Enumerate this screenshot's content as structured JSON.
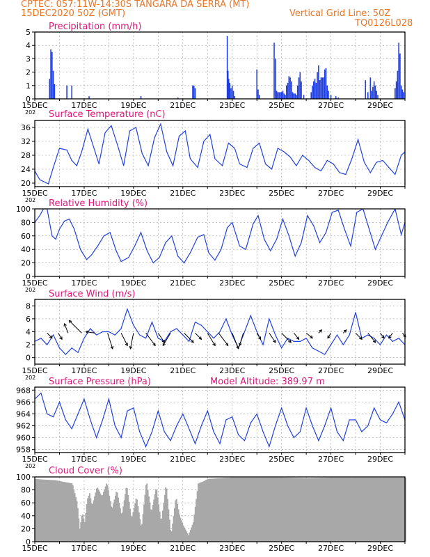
{
  "header": {
    "line1_left": "CPTEC:   057:11W-14:30S   TANGARA DA SERRA (MT)",
    "line2_left": "15DEC2020 50Z (GMT)",
    "line2_right": "Vertical Grid Line: 50Z",
    "line3_right": "TQ0126L028"
  },
  "colors": {
    "header": "#e8772a",
    "panel_title": "#e0177a",
    "series_line": "#1f3fe0",
    "bars": "#1f3fe0",
    "cloud_fill": "#a8a8a8",
    "frame": "#000000",
    "grid": "#9a9a9a"
  },
  "x_axis": {
    "start_day": 15,
    "end_day": 30,
    "tick_labels": [
      "15DEC",
      "17DEC",
      "19DEC",
      "21DEC",
      "23DEC",
      "25DEC",
      "27DEC",
      "29DEC"
    ],
    "tick_days": [
      15,
      17,
      19,
      21,
      23,
      25,
      27,
      29
    ],
    "year_stub": "202"
  },
  "model_altitude": "Model Altitude: 389.97  m",
  "chart_data": [
    {
      "type": "bar",
      "title": "Precipitation (mm/h)",
      "ylim": [
        0,
        5
      ],
      "yticks": [
        0,
        1,
        2,
        3,
        4,
        5
      ],
      "grid": true,
      "x": [
        15.6,
        15.65,
        15.7,
        15.75,
        15.8,
        16.3,
        16.5,
        17.2,
        19.3,
        20.8,
        21.4,
        21.45,
        21.5,
        22.8,
        22.83,
        22.86,
        22.9,
        22.95,
        23.0,
        23.05,
        23.1,
        24.0,
        24.05,
        24.1,
        24.7,
        24.75,
        24.8,
        24.85,
        24.9,
        24.95,
        25.0,
        25.05,
        25.1,
        25.15,
        25.2,
        25.25,
        25.3,
        25.35,
        25.4,
        25.45,
        25.5,
        25.55,
        25.6,
        25.65,
        25.7,
        25.75,
        25.8,
        25.9,
        26.2,
        26.25,
        26.3,
        26.35,
        26.4,
        26.45,
        26.5,
        26.55,
        26.6,
        26.65,
        26.7,
        26.75,
        26.8,
        26.85,
        26.9,
        27.0,
        27.2,
        27.3,
        28.4,
        28.5,
        28.6,
        28.65,
        28.7,
        28.75,
        28.8,
        28.85,
        28.9,
        29.6,
        29.65,
        29.7,
        29.75,
        29.8,
        29.85,
        29.9,
        29.95
      ],
      "values": [
        1.5,
        3.7,
        3.5,
        2.1,
        1.1,
        1.0,
        1.0,
        0.2,
        0.2,
        0.1,
        1.0,
        1.0,
        0.8,
        4.7,
        2.1,
        1.5,
        1.2,
        0.8,
        1.0,
        0.6,
        0.2,
        2.2,
        0.7,
        0.3,
        4.2,
        3.0,
        0.6,
        0.5,
        0.5,
        0.5,
        0.5,
        0.6,
        0.4,
        0.3,
        1.0,
        1.2,
        1.7,
        1.6,
        1.3,
        0.5,
        0.4,
        0.4,
        0.3,
        1.0,
        1.6,
        2.0,
        1.3,
        0.3,
        0.5,
        1.0,
        1.3,
        1.5,
        1.2,
        2.0,
        2.5,
        1.4,
        1.6,
        1.6,
        1.6,
        2.2,
        2.3,
        1.0,
        0.6,
        0.3,
        0.2,
        0.1,
        1.4,
        0.5,
        1.6,
        0.6,
        0.9,
        1.3,
        1.0,
        0.6,
        0.3,
        0.8,
        1.3,
        2.1,
        4.2,
        3.4,
        1.0,
        0.7,
        0.5
      ]
    },
    {
      "type": "line",
      "title": "Surface Temperature (nC)",
      "ylim": [
        19,
        38
      ],
      "yticks": [
        20,
        24,
        28,
        32,
        36
      ],
      "grid": true,
      "x": [
        15.0,
        15.2,
        15.4,
        15.55,
        15.75,
        16.0,
        16.3,
        16.5,
        16.7,
        16.9,
        17.15,
        17.4,
        17.6,
        17.85,
        18.1,
        18.35,
        18.6,
        18.85,
        19.1,
        19.35,
        19.6,
        19.85,
        20.1,
        20.35,
        20.6,
        20.85,
        21.1,
        21.3,
        21.6,
        21.85,
        22.1,
        22.3,
        22.6,
        22.85,
        23.1,
        23.3,
        23.6,
        23.85,
        24.1,
        24.35,
        24.6,
        24.85,
        25.1,
        25.35,
        25.6,
        25.85,
        26.1,
        26.35,
        26.6,
        26.85,
        27.1,
        27.35,
        27.6,
        27.85,
        28.1,
        28.35,
        28.6,
        28.85,
        29.1,
        29.35,
        29.6,
        29.85,
        30.0
      ],
      "values": [
        23.5,
        21.0,
        20.3,
        19.8,
        24.5,
        30.0,
        29.5,
        26.5,
        25.0,
        29.0,
        35.5,
        30.0,
        25.5,
        34.5,
        36.5,
        31.0,
        25.0,
        35.0,
        36.0,
        28.5,
        25.0,
        33.0,
        37.0,
        29.0,
        25.0,
        33.5,
        35.0,
        27.0,
        24.5,
        32.0,
        34.0,
        27.0,
        25.0,
        31.5,
        30.0,
        25.5,
        24.5,
        30.0,
        31.5,
        25.5,
        24.0,
        30.0,
        29.0,
        27.5,
        25.0,
        28.0,
        26.5,
        24.5,
        23.5,
        26.5,
        25.5,
        23.0,
        22.5,
        27.0,
        32.5,
        26.0,
        23.0,
        26.0,
        26.5,
        24.5,
        22.5,
        28.0,
        29.0
      ]
    },
    {
      "type": "line",
      "title": "Relative Humidity (%)",
      "ylim": [
        0,
        100
      ],
      "yticks": [
        0,
        20,
        40,
        60,
        80,
        100
      ],
      "grid": true,
      "x": [
        15.0,
        15.2,
        15.35,
        15.5,
        15.7,
        15.85,
        16.0,
        16.2,
        16.4,
        16.6,
        16.85,
        17.1,
        17.3,
        17.55,
        17.8,
        18.05,
        18.3,
        18.5,
        18.8,
        19.05,
        19.3,
        19.55,
        19.8,
        20.05,
        20.3,
        20.55,
        20.8,
        21.05,
        21.3,
        21.6,
        21.85,
        22.05,
        22.3,
        22.55,
        22.8,
        23.0,
        23.3,
        23.55,
        23.85,
        24.05,
        24.3,
        24.55,
        24.8,
        25.05,
        25.3,
        25.55,
        25.8,
        26.05,
        26.3,
        26.55,
        26.8,
        27.05,
        27.3,
        27.55,
        27.8,
        28.05,
        28.3,
        28.55,
        28.8,
        29.05,
        29.3,
        29.6,
        29.85,
        30.0
      ],
      "values": [
        80,
        90,
        100,
        100,
        60,
        55,
        70,
        82,
        85,
        70,
        40,
        25,
        32,
        45,
        60,
        65,
        38,
        22,
        28,
        45,
        65,
        38,
        20,
        28,
        50,
        60,
        30,
        20,
        35,
        58,
        62,
        35,
        24,
        40,
        72,
        80,
        45,
        40,
        78,
        90,
        55,
        38,
        55,
        85,
        60,
        30,
        50,
        90,
        75,
        50,
        65,
        95,
        98,
        70,
        45,
        95,
        100,
        70,
        40,
        60,
        80,
        100,
        62,
        80
      ]
    },
    {
      "type": "line",
      "title": "Surface Wind (m/s)",
      "ylim": [
        -1,
        9
      ],
      "yticks": [
        0,
        2,
        4,
        6,
        8
      ],
      "grid": true,
      "x": [
        15.0,
        15.25,
        15.5,
        15.75,
        16.0,
        16.25,
        16.5,
        16.75,
        17.0,
        17.25,
        17.5,
        17.75,
        18.0,
        18.25,
        18.5,
        18.75,
        19.0,
        19.25,
        19.5,
        19.75,
        20.0,
        20.25,
        20.5,
        20.75,
        21.0,
        21.25,
        21.5,
        21.75,
        22.0,
        22.25,
        22.5,
        22.75,
        23.0,
        23.25,
        23.5,
        23.75,
        24.0,
        24.25,
        24.5,
        24.75,
        25.0,
        25.25,
        25.5,
        25.75,
        26.0,
        26.25,
        26.5,
        26.75,
        27.0,
        27.25,
        27.5,
        27.75,
        28.0,
        28.25,
        28.5,
        28.75,
        29.0,
        29.25,
        29.5,
        29.75,
        30.0
      ],
      "values": [
        2.5,
        3.0,
        2.0,
        3.5,
        1.5,
        0.5,
        1.5,
        0.8,
        3.0,
        4.5,
        3.5,
        4.0,
        4.0,
        3.5,
        4.5,
        7.5,
        5.0,
        3.5,
        3.0,
        5.5,
        3.0,
        2.5,
        4.0,
        4.5,
        3.5,
        2.5,
        5.5,
        5.0,
        4.0,
        3.0,
        4.0,
        6.0,
        3.5,
        1.5,
        4.0,
        6.5,
        4.0,
        2.0,
        6.0,
        3.5,
        1.5,
        3.0,
        2.5,
        2.5,
        3.0,
        1.5,
        1.0,
        0.5,
        2.0,
        3.5,
        2.0,
        3.5,
        7.0,
        3.0,
        3.5,
        3.0,
        2.0,
        3.5,
        2.5,
        3.0,
        2.0
      ]
    },
    {
      "type": "line",
      "title": "Surface Pressure (hPa)",
      "ylim": [
        957.5,
        968.5
      ],
      "yticks": [
        958,
        960,
        962,
        964,
        966,
        968
      ],
      "grid": true,
      "x": [
        15.0,
        15.25,
        15.5,
        15.75,
        16.0,
        16.25,
        16.5,
        16.75,
        17.0,
        17.25,
        17.5,
        17.75,
        18.0,
        18.25,
        18.5,
        18.75,
        19.0,
        19.25,
        19.5,
        19.75,
        20.0,
        20.25,
        20.5,
        20.75,
        21.0,
        21.25,
        21.5,
        21.75,
        22.0,
        22.25,
        22.5,
        22.75,
        23.0,
        23.25,
        23.5,
        23.75,
        24.0,
        24.25,
        24.5,
        24.75,
        25.0,
        25.25,
        25.5,
        25.75,
        26.0,
        26.25,
        26.5,
        26.75,
        27.0,
        27.25,
        27.5,
        27.75,
        28.0,
        28.25,
        28.5,
        28.75,
        29.0,
        29.25,
        29.5,
        29.75,
        30.0
      ],
      "values": [
        966.5,
        967.5,
        964.0,
        963.5,
        966.0,
        963.0,
        961.5,
        964.0,
        966.5,
        963.0,
        960.0,
        963.0,
        966.5,
        962.0,
        960.0,
        964.5,
        965.0,
        961.0,
        958.5,
        961.0,
        964.5,
        961.0,
        959.5,
        962.0,
        964.0,
        961.5,
        959.0,
        962.0,
        964.5,
        961.0,
        959.0,
        963.0,
        963.5,
        960.5,
        959.5,
        962.5,
        964.0,
        961.0,
        958.5,
        962.0,
        965.0,
        962.0,
        960.0,
        961.0,
        965.0,
        962.0,
        959.5,
        962.0,
        965.0,
        961.0,
        959.5,
        963.0,
        963.0,
        961.0,
        962.0,
        965.0,
        963.0,
        962.5,
        964.0,
        966.0,
        963.0
      ]
    },
    {
      "type": "area",
      "title": "Cloud Cover (%)",
      "ylim": [
        0,
        100
      ],
      "yticks": [
        0,
        20,
        40,
        60,
        80,
        100
      ],
      "grid": true,
      "x": [
        15.0,
        15.3,
        15.8,
        16.2,
        16.5,
        16.7,
        16.8,
        16.9,
        17.0,
        17.1,
        17.2,
        17.3,
        17.5,
        17.7,
        17.9,
        18.1,
        18.3,
        18.5,
        18.7,
        18.9,
        19.1,
        19.3,
        19.5,
        19.7,
        19.9,
        20.1,
        20.3,
        20.5,
        20.7,
        20.85,
        21.0,
        21.2,
        21.4,
        21.6,
        21.8,
        22.0,
        22.5,
        23.0,
        24.0,
        25.0,
        26.0,
        27.0,
        28.0,
        29.0,
        30.0
      ],
      "values": [
        97,
        96,
        95,
        92,
        90,
        60,
        20,
        45,
        30,
        65,
        75,
        55,
        85,
        70,
        92,
        50,
        80,
        40,
        88,
        35,
        70,
        20,
        95,
        45,
        85,
        30,
        90,
        10,
        70,
        40,
        25,
        10,
        30,
        90,
        93,
        97,
        98,
        99,
        99,
        99,
        98,
        99,
        99,
        99,
        99
      ]
    }
  ],
  "wind_arrows": {
    "x": [
      15.5,
      15.95,
      16.35,
      16.9,
      17.45,
      17.95,
      18.5,
      19.0,
      19.5,
      20.0,
      20.5,
      21.05,
      21.5,
      22.0,
      22.45,
      23.0,
      23.45,
      24.0,
      24.5,
      25.0,
      25.5,
      26.0,
      26.5,
      27.0,
      27.5,
      28.0,
      28.5,
      29.0,
      29.5,
      29.9
    ],
    "u": [
      0.8,
      0.6,
      -0.6,
      -2.0,
      -1.5,
      0.8,
      1.0,
      -0.5,
      1.5,
      1.0,
      -1.2,
      1.5,
      1.0,
      1.2,
      1.5,
      1.0,
      -0.6,
      0.6,
      1.0,
      1.5,
      0.8,
      1.0,
      0.5,
      -0.5,
      0.5,
      1.0,
      1.2,
      0.6,
      -0.6,
      0.5
    ],
    "v": [
      -0.8,
      -1.0,
      1.5,
      2.0,
      0.2,
      -2.5,
      -2.0,
      -2.5,
      -2.0,
      -1.5,
      -2.0,
      -1.5,
      -1.0,
      -2.0,
      -2.0,
      -2.5,
      -2.0,
      -1.0,
      -1.5,
      -1.5,
      -1.0,
      -0.8,
      0.5,
      -0.8,
      0.5,
      -1.0,
      -1.5,
      -0.8,
      -0.8,
      -0.6
    ]
  }
}
